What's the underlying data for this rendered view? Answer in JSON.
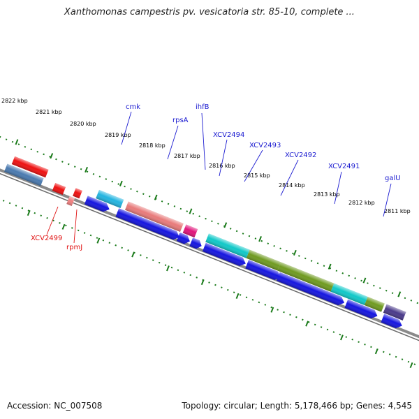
{
  "title": "Xanthomonas campestris pv. vesicatoria str. 85-10, complete ...",
  "footer": {
    "accession": "Accession: NC_007508",
    "stats": "Topology: circular; Length: 5,178,466 bp; Genes: 4,545"
  },
  "colors": {
    "backbone": "#8c8c8c",
    "tick": "#1a7a1a",
    "label_forward": "#1a1ad0",
    "label_reverse": "#e01010"
  },
  "kbp_labels": [
    "2822 kbp",
    "2821 kbp",
    "2820 kbp",
    "2819 kbp",
    "2818 kbp",
    "2817 kbp",
    "2816 kbp",
    "2815 kbp",
    "2814 kbp",
    "2813 kbp",
    "2812 kbp",
    "2811 kbp"
  ],
  "gene_labels": [
    {
      "name": "cmk",
      "strand": "forward"
    },
    {
      "name": "rpsA",
      "strand": "forward"
    },
    {
      "name": "ihfB",
      "strand": "forward"
    },
    {
      "name": "XCV2494",
      "strand": "forward"
    },
    {
      "name": "XCV2493",
      "strand": "forward"
    },
    {
      "name": "XCV2492",
      "strand": "forward"
    },
    {
      "name": "XCV2491",
      "strand": "forward"
    },
    {
      "name": "galU",
      "strand": "forward"
    },
    {
      "name": "XCV2499",
      "strand": "reverse"
    },
    {
      "name": "rpmJ",
      "strand": "reverse"
    }
  ],
  "features": {
    "outer_forward": [
      {
        "name": "cmk-feature",
        "color": "#22b4e0"
      },
      {
        "name": "rpsA-feature",
        "color": "#e87a7a"
      },
      {
        "name": "ihfB-feature",
        "color": "#e0157a"
      },
      {
        "name": "XCV2494-feature",
        "color": "#10c8c8"
      },
      {
        "name": "XCV2493-feature",
        "color": "#6f9a20"
      },
      {
        "name": "XCV2492-feature",
        "color": "#6f9a20"
      },
      {
        "name": "XCV2491-feature",
        "color": "#10c8c8"
      },
      {
        "name": "galU-feature",
        "color": "#6f9a20"
      },
      {
        "name": "next-feature",
        "color": "#4a3a8a"
      }
    ],
    "outer_reverse": [
      {
        "name": "left-red-feature",
        "color": "#ee1111"
      },
      {
        "name": "left-red-feature-2",
        "color": "#ee1111"
      },
      {
        "name": "left-grey-feature",
        "color": "#c0c0c0"
      },
      {
        "name": "left-blue-feature",
        "color": "#4a7ab0"
      },
      {
        "name": "XCV2499-feature",
        "color": "#ee1111"
      },
      {
        "name": "rpmJ-feature",
        "color": "#ee1111"
      },
      {
        "name": "rpmJ-feature-2",
        "color": "#f08080"
      }
    ],
    "inner_forward_color": "#1515e0"
  }
}
